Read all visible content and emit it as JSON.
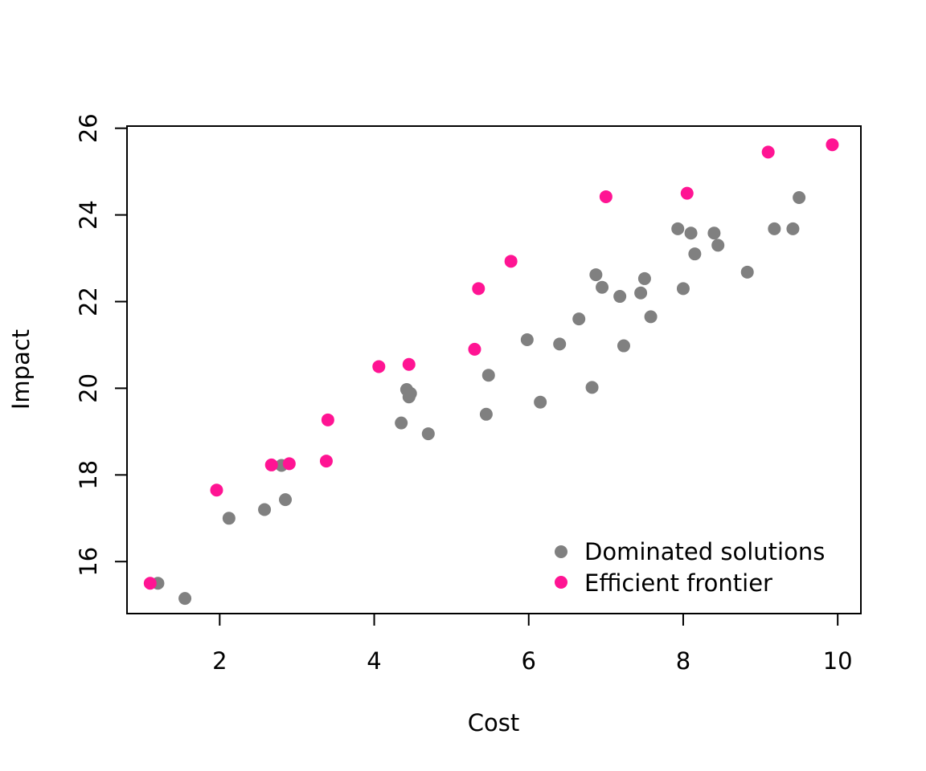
{
  "colors": {
    "dominated": "#808080",
    "frontier": "#FF1493",
    "axis": "#000000",
    "background": "#FFFFFF"
  },
  "chart_data": {
    "type": "scatter",
    "title": "",
    "xlabel": "Cost",
    "ylabel": "Impact",
    "xlim": [
      0.8,
      10.3
    ],
    "ylim": [
      14.8,
      26.05
    ],
    "x_ticks": [
      2,
      4,
      6,
      8,
      10
    ],
    "y_ticks": [
      16,
      18,
      20,
      22,
      24,
      26
    ],
    "grid": false,
    "legend": {
      "position": "bottom-right",
      "entries": [
        "Dominated solutions",
        "Efficient frontier"
      ]
    },
    "series": [
      {
        "name": "Dominated solutions",
        "color": "#808080",
        "points": [
          [
            1.2,
            15.5
          ],
          [
            1.55,
            15.15
          ],
          [
            2.12,
            17.0
          ],
          [
            2.58,
            17.2
          ],
          [
            2.8,
            18.22
          ],
          [
            2.85,
            17.43
          ],
          [
            4.35,
            19.2
          ],
          [
            4.42,
            19.97
          ],
          [
            4.45,
            19.8
          ],
          [
            4.47,
            19.88
          ],
          [
            4.7,
            18.95
          ],
          [
            5.45,
            19.4
          ],
          [
            5.48,
            20.3
          ],
          [
            5.98,
            21.12
          ],
          [
            6.15,
            19.68
          ],
          [
            6.4,
            21.02
          ],
          [
            6.65,
            21.6
          ],
          [
            6.82,
            20.02
          ],
          [
            6.87,
            22.62
          ],
          [
            6.95,
            22.33
          ],
          [
            7.18,
            22.12
          ],
          [
            7.23,
            20.98
          ],
          [
            7.45,
            22.2
          ],
          [
            7.5,
            22.53
          ],
          [
            7.58,
            21.65
          ],
          [
            7.93,
            23.68
          ],
          [
            8.0,
            22.3
          ],
          [
            8.1,
            23.58
          ],
          [
            8.15,
            23.1
          ],
          [
            8.4,
            23.58
          ],
          [
            8.45,
            23.3
          ],
          [
            8.83,
            22.68
          ],
          [
            9.18,
            23.68
          ],
          [
            9.42,
            23.68
          ],
          [
            9.5,
            24.4
          ]
        ]
      },
      {
        "name": "Efficient frontier",
        "color": "#FF1493",
        "points": [
          [
            1.1,
            15.5
          ],
          [
            1.96,
            17.65
          ],
          [
            2.67,
            18.23
          ],
          [
            2.9,
            18.26
          ],
          [
            3.38,
            18.32
          ],
          [
            3.4,
            19.27
          ],
          [
            4.06,
            20.5
          ],
          [
            4.45,
            20.55
          ],
          [
            5.3,
            20.9
          ],
          [
            5.35,
            22.3
          ],
          [
            5.77,
            22.93
          ],
          [
            7.0,
            24.42
          ],
          [
            8.05,
            24.5
          ],
          [
            9.1,
            25.45
          ],
          [
            9.93,
            25.62
          ]
        ]
      }
    ]
  }
}
